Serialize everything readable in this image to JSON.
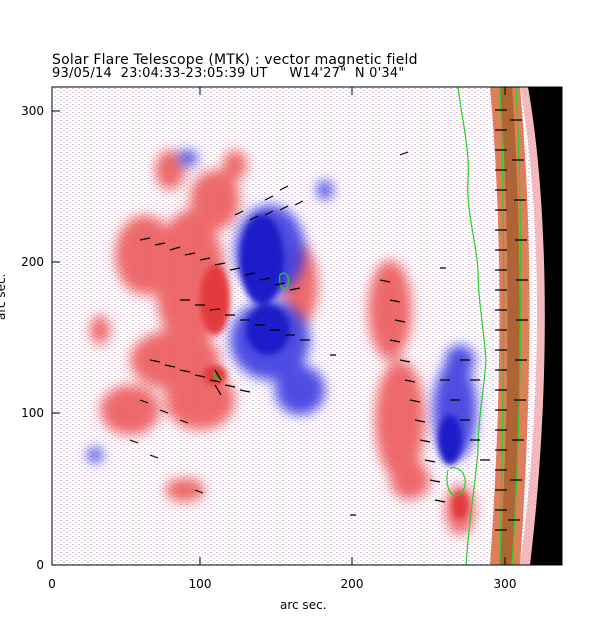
{
  "header": {
    "title": "Solar Flare Telescope (MTK) : vector magnetic field",
    "subtitle": "93/05/14  23:04:33-23:05:39 UT     W14'27\"  N 0'34\""
  },
  "axes": {
    "xlabel": "arc sec.",
    "ylabel": "arc sec.",
    "xlim": [
      0,
      335
    ],
    "ylim": [
      0,
      315
    ],
    "x_ticks": [
      "0",
      "100",
      "200",
      "300"
    ],
    "y_ticks": [
      "0",
      "100",
      "200",
      "300"
    ]
  },
  "colors": {
    "positive_polarity": "#e8474a",
    "negative_polarity": "#2b2bd8",
    "neutral_line": "#26d026",
    "limb_band": "#c8502a",
    "background": "#ffffff"
  }
}
